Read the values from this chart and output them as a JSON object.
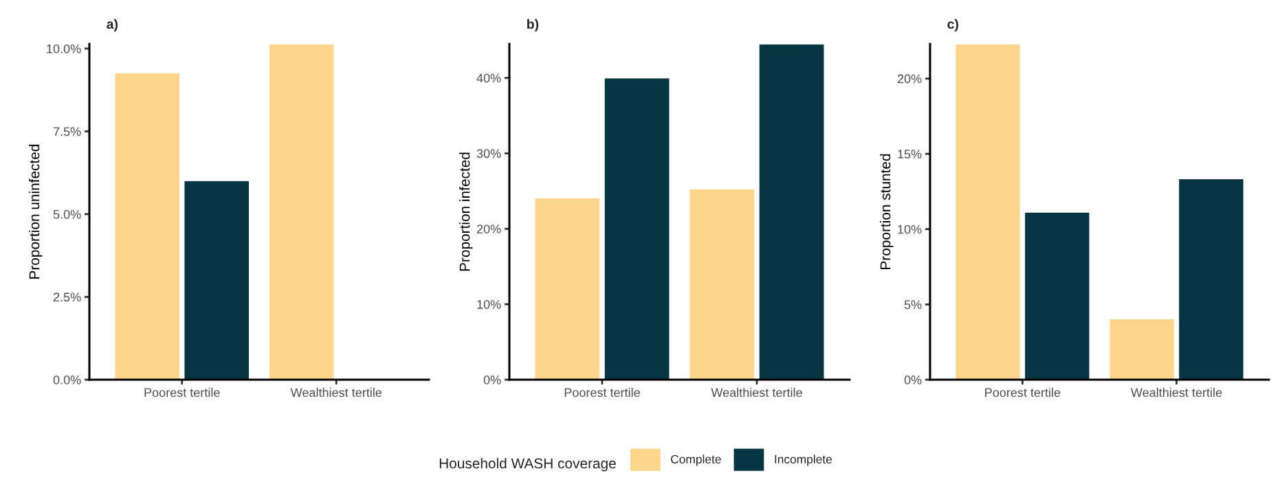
{
  "chart_data": [
    {
      "type": "bar",
      "title": "a)",
      "ylabel": "Proportion uninfected",
      "categories": [
        "Poorest tertile",
        "Wealthiest tertile"
      ],
      "series": [
        {
          "name": "Complete",
          "color": "#fdd68b",
          "values": [
            9.27,
            10.14
          ]
        },
        {
          "name": "Incomplete",
          "color": "#063642",
          "values": [
            6.01,
            null
          ]
        }
      ],
      "ylim": [
        0,
        10.14
      ],
      "yticks": [
        {
          "value": 0,
          "label": "0.0%"
        },
        {
          "value": 2.5,
          "label": "2.5%"
        },
        {
          "value": 5,
          "label": "5.0%"
        },
        {
          "value": 7.5,
          "label": "7.5%"
        },
        {
          "value": 10,
          "label": "10.0%"
        }
      ],
      "grid": false,
      "legend": "bottom",
      "legend_title": "Household WASH coverage"
    },
    {
      "type": "bar",
      "title": "b)",
      "ylabel": "Proportion infected",
      "categories": [
        "Poorest tertile",
        "Wealthiest tertile"
      ],
      "series": [
        {
          "color": "#fdd68b",
          "values": [
            24.1,
            25.3
          ]
        },
        {
          "color": "#063642",
          "values": [
            40.0,
            44.5
          ]
        }
      ],
      "ylim": [
        0,
        44.5
      ],
      "yticks": [
        {
          "value": 0,
          "label": "0%"
        },
        {
          "value": 10,
          "label": "10%"
        },
        {
          "value": 20,
          "label": "20%"
        },
        {
          "value": 30,
          "label": "30%"
        },
        {
          "value": 40,
          "label": "40%"
        }
      ],
      "grid": false
    },
    {
      "type": "bar",
      "title": "c)",
      "ylabel": "Proportion stunted",
      "categories": [
        "Poorest tertile",
        "Wealthiest tertile"
      ],
      "series": [
        {
          "color": "#fdd68b",
          "values": [
            22.3,
            4.04
          ]
        },
        {
          "color": "#063642",
          "values": [
            11.13,
            13.35
          ]
        }
      ],
      "ylim": [
        0,
        22.3
      ],
      "yticks": [
        {
          "value": 0,
          "label": "0%"
        },
        {
          "value": 5,
          "label": "5%"
        },
        {
          "value": 10,
          "label": "10%"
        },
        {
          "value": 15,
          "label": "15%"
        },
        {
          "value": 20,
          "label": "20%"
        }
      ],
      "grid": false
    }
  ]
}
